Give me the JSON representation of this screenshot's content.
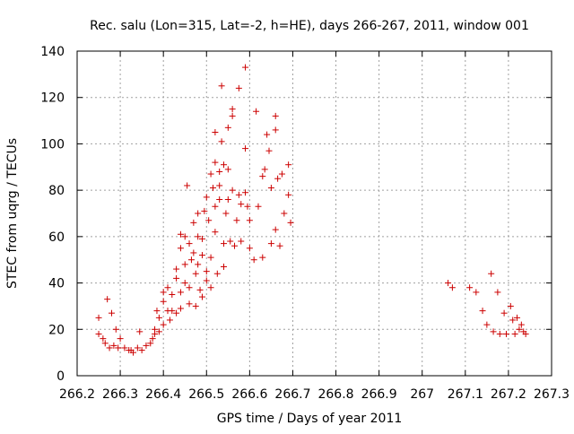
{
  "chart_data": {
    "type": "scatter",
    "title": "Rec. salu (Lon=315, Lat=-2, h=HE), days 266-267, 2011, window 001",
    "xlabel": "GPS time / Days of year 2011",
    "ylabel": "STEC from uqrg / TECUs",
    "xlim": [
      266.2,
      267.3
    ],
    "ylim": [
      0,
      140
    ],
    "xticks": [
      "266.2",
      "266.3",
      "266.4",
      "266.5",
      "266.6",
      "266.7",
      "266.8",
      "266.9",
      "267",
      "267.1",
      "267.2",
      "267.3"
    ],
    "yticks": [
      "0",
      "20",
      "40",
      "60",
      "80",
      "100",
      "120",
      "140"
    ],
    "grid": true,
    "marker": "+",
    "color": "#cc0000",
    "series": [
      {
        "points": [
          [
            266.25,
            25
          ],
          [
            266.25,
            18
          ],
          [
            266.26,
            16
          ],
          [
            266.27,
            33
          ],
          [
            266.265,
            14
          ],
          [
            266.28,
            27
          ],
          [
            266.275,
            12
          ],
          [
            266.285,
            13
          ],
          [
            266.29,
            20
          ],
          [
            266.295,
            12
          ],
          [
            266.3,
            16
          ],
          [
            266.31,
            12
          ],
          [
            266.32,
            11
          ],
          [
            266.325,
            11
          ],
          [
            266.33,
            10
          ],
          [
            266.34,
            12
          ],
          [
            266.345,
            19
          ],
          [
            266.35,
            11
          ],
          [
            266.36,
            13
          ],
          [
            266.37,
            14
          ],
          [
            266.375,
            16
          ],
          [
            266.38,
            20
          ],
          [
            266.38,
            18
          ],
          [
            266.385,
            28
          ],
          [
            266.39,
            25
          ],
          [
            266.39,
            19
          ],
          [
            266.4,
            22
          ],
          [
            266.4,
            36
          ],
          [
            266.4,
            32
          ],
          [
            266.41,
            28
          ],
          [
            266.41,
            38
          ],
          [
            266.415,
            24
          ],
          [
            266.42,
            35
          ],
          [
            266.42,
            28
          ],
          [
            266.43,
            46
          ],
          [
            266.43,
            42
          ],
          [
            266.43,
            27
          ],
          [
            266.44,
            61
          ],
          [
            266.44,
            55
          ],
          [
            266.44,
            36
          ],
          [
            266.44,
            29
          ],
          [
            266.45,
            60
          ],
          [
            266.45,
            48
          ],
          [
            266.45,
            40
          ],
          [
            266.455,
            82
          ],
          [
            266.46,
            57
          ],
          [
            266.46,
            38
          ],
          [
            266.46,
            31
          ],
          [
            266.465,
            50
          ],
          [
            266.47,
            66
          ],
          [
            266.47,
            53
          ],
          [
            266.475,
            44
          ],
          [
            266.475,
            30
          ],
          [
            266.48,
            70
          ],
          [
            266.48,
            60
          ],
          [
            266.48,
            48
          ],
          [
            266.485,
            37
          ],
          [
            266.49,
            59
          ],
          [
            266.49,
            52
          ],
          [
            266.49,
            34
          ],
          [
            266.495,
            71
          ],
          [
            266.5,
            77
          ],
          [
            266.5,
            45
          ],
          [
            266.5,
            41
          ],
          [
            266.505,
            67
          ],
          [
            266.51,
            87
          ],
          [
            266.51,
            51
          ],
          [
            266.51,
            38
          ],
          [
            266.515,
            81
          ],
          [
            266.52,
            105
          ],
          [
            266.52,
            92
          ],
          [
            266.52,
            73
          ],
          [
            266.52,
            62
          ],
          [
            266.525,
            44
          ],
          [
            266.53,
            88
          ],
          [
            266.53,
            82
          ],
          [
            266.53,
            76
          ],
          [
            266.535,
            125
          ],
          [
            266.535,
            101
          ],
          [
            266.54,
            91
          ],
          [
            266.54,
            57
          ],
          [
            266.54,
            47
          ],
          [
            266.545,
            70
          ],
          [
            266.55,
            107
          ],
          [
            266.55,
            89
          ],
          [
            266.55,
            76
          ],
          [
            266.555,
            58
          ],
          [
            266.56,
            115
          ],
          [
            266.56,
            112
          ],
          [
            266.56,
            80
          ],
          [
            266.565,
            56
          ],
          [
            266.57,
            67
          ],
          [
            266.575,
            124
          ],
          [
            266.575,
            78
          ],
          [
            266.58,
            74
          ],
          [
            266.58,
            58
          ],
          [
            266.59,
            133
          ],
          [
            266.59,
            98
          ],
          [
            266.59,
            79
          ],
          [
            266.595,
            73
          ],
          [
            266.6,
            67
          ],
          [
            266.6,
            55
          ],
          [
            266.61,
            50
          ],
          [
            266.615,
            114
          ],
          [
            266.62,
            73
          ],
          [
            266.63,
            86
          ],
          [
            266.63,
            51
          ],
          [
            266.635,
            89
          ],
          [
            266.64,
            104
          ],
          [
            266.645,
            97
          ],
          [
            266.65,
            81
          ],
          [
            266.65,
            57
          ],
          [
            266.66,
            112
          ],
          [
            266.66,
            106
          ],
          [
            266.66,
            63
          ],
          [
            266.665,
            85
          ],
          [
            266.67,
            56
          ],
          [
            266.675,
            87
          ],
          [
            266.68,
            70
          ],
          [
            266.69,
            91
          ],
          [
            266.69,
            78
          ],
          [
            266.695,
            66
          ],
          [
            267.06,
            40
          ],
          [
            267.07,
            38
          ],
          [
            267.11,
            38
          ],
          [
            267.125,
            36
          ],
          [
            267.14,
            28
          ],
          [
            267.15,
            22
          ],
          [
            267.16,
            44
          ],
          [
            267.165,
            19
          ],
          [
            267.175,
            36
          ],
          [
            267.18,
            18
          ],
          [
            267.19,
            27
          ],
          [
            267.195,
            18
          ],
          [
            267.205,
            30
          ],
          [
            267.21,
            24
          ],
          [
            267.215,
            18
          ],
          [
            267.22,
            25
          ],
          [
            267.225,
            20
          ],
          [
            267.23,
            22
          ],
          [
            267.235,
            19
          ],
          [
            267.24,
            18
          ]
        ]
      }
    ]
  }
}
